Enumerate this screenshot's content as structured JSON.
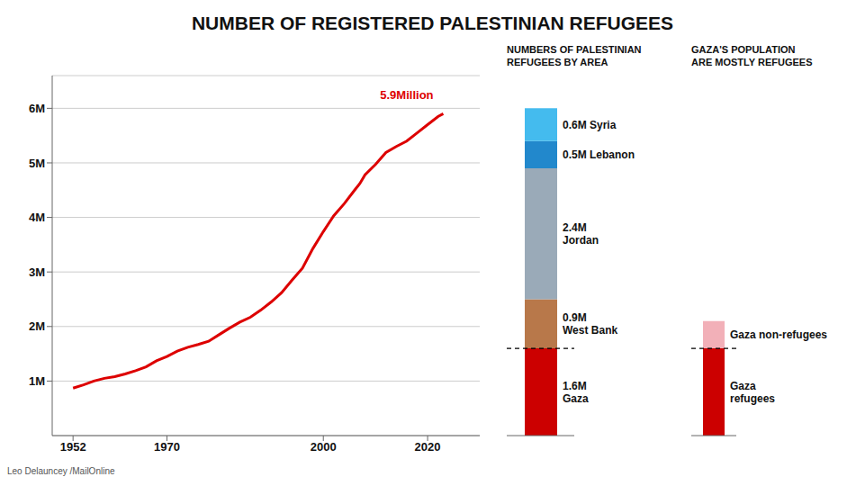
{
  "chart_data": [
    {
      "type": "line",
      "title": "NUMBER OF REGISTERED PALESTINIAN REFUGEES",
      "x": [
        1952,
        1954,
        1956,
        1958,
        1960,
        1962,
        1964,
        1966,
        1968,
        1970,
        1972,
        1974,
        1976,
        1978,
        1980,
        1982,
        1984,
        1986,
        1988,
        1990,
        1992,
        1994,
        1996,
        1998,
        2000,
        2002,
        2004,
        2006,
        2007,
        2008,
        2010,
        2012,
        2014,
        2016,
        2018,
        2020,
        2022,
        2023
      ],
      "values": [
        0.87,
        0.93,
        1.0,
        1.05,
        1.08,
        1.13,
        1.19,
        1.26,
        1.37,
        1.45,
        1.55,
        1.62,
        1.67,
        1.73,
        1.85,
        1.97,
        2.08,
        2.17,
        2.3,
        2.45,
        2.62,
        2.85,
        3.07,
        3.43,
        3.74,
        4.03,
        4.25,
        4.5,
        4.62,
        4.78,
        4.97,
        5.19,
        5.3,
        5.4,
        5.55,
        5.7,
        5.85,
        5.9
      ],
      "color": "#dd0000",
      "xlim": [
        1948,
        2030
      ],
      "xticks": [
        1952,
        1970,
        2000,
        2020
      ],
      "ylim": [
        0,
        6.6
      ],
      "yticks": [
        {
          "value": 1,
          "label": "1M"
        },
        {
          "value": 2,
          "label": "2M"
        },
        {
          "value": 3,
          "label": "3M"
        },
        {
          "value": 4,
          "label": "4M"
        },
        {
          "value": 5,
          "label": "5M"
        },
        {
          "value": 6,
          "label": "6M"
        }
      ],
      "grid": true,
      "annotations": [
        {
          "text": "5.9Million",
          "x": 2016,
          "y": 6.25,
          "color": "#dd0000"
        },
        {
          "text": "Leo Delauncey /MailOnline"
        }
      ]
    },
    {
      "type": "bar",
      "title": "NUMBERS OF PALESTINIAN\nREFUGEES BY AREA",
      "stacked": true,
      "categories": [
        null
      ],
      "series": [
        {
          "name": "1.6M\nGaza",
          "color": "#cc0000",
          "values": [
            1.6
          ]
        },
        {
          "name": "0.9M\nWest Bank",
          "color": "#b8784a",
          "values": [
            0.9
          ]
        },
        {
          "name": "2.4M\nJordan",
          "color": "#9aaab8",
          "values": [
            2.4
          ]
        },
        {
          "name": "0.5M Lebanon",
          "color": "#2288cc",
          "values": [
            0.5
          ]
        },
        {
          "name": "0.6M Syria",
          "color": "#44bbee",
          "values": [
            0.6
          ]
        }
      ],
      "ylim": [
        0,
        6.6
      ],
      "tick_labels": false
    },
    {
      "type": "bar",
      "title": "GAZA'S POPULATION\nARE MOSTLY REFUGEES",
      "stacked": true,
      "categories": [
        null
      ],
      "series": [
        {
          "name": "Gaza\nrefugees",
          "color": "#cc0000",
          "values": [
            1.6
          ]
        },
        {
          "name": "Gaza non-refugees",
          "color": "#f2b0b8",
          "values": [
            0.5
          ]
        }
      ],
      "ylim": [
        0,
        6.6
      ],
      "tick_labels": false
    }
  ]
}
